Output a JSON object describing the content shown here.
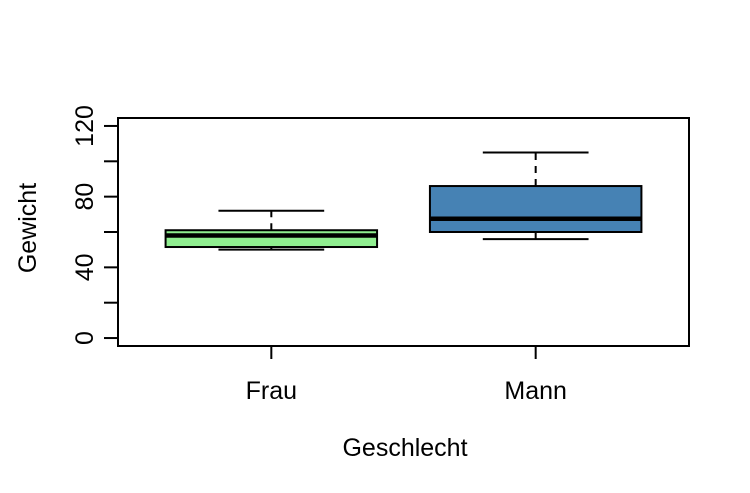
{
  "chart_data": {
    "type": "boxplot",
    "xlabel": "Geschlecht",
    "ylabel": "Gewicht",
    "categories": [
      "Frau",
      "Mann"
    ],
    "series": [
      {
        "name": "Frau",
        "min": 50,
        "q1": 51.5,
        "median": 58,
        "q3": 61,
        "max": 72,
        "fill_color": "#90EE90"
      },
      {
        "name": "Mann",
        "min": 56,
        "q1": 60,
        "median": 67.5,
        "q3": 86,
        "max": 105,
        "fill_color": "#4682B4"
      }
    ],
    "y_axis": {
      "ticks": [
        0,
        20,
        40,
        60,
        80,
        100,
        120
      ],
      "labeled_ticks": [
        0,
        40,
        80,
        120
      ],
      "ylim": [
        -4.5,
        124.5
      ]
    },
    "x_axis": {
      "positions": [
        1,
        2
      ],
      "xlim": [
        0.42,
        2.58
      ],
      "box_width": 0.8
    },
    "grid": false,
    "colors": {
      "stroke": "#000000",
      "median": "#000000",
      "text": "#000000",
      "background": "#FFFFFF"
    }
  }
}
